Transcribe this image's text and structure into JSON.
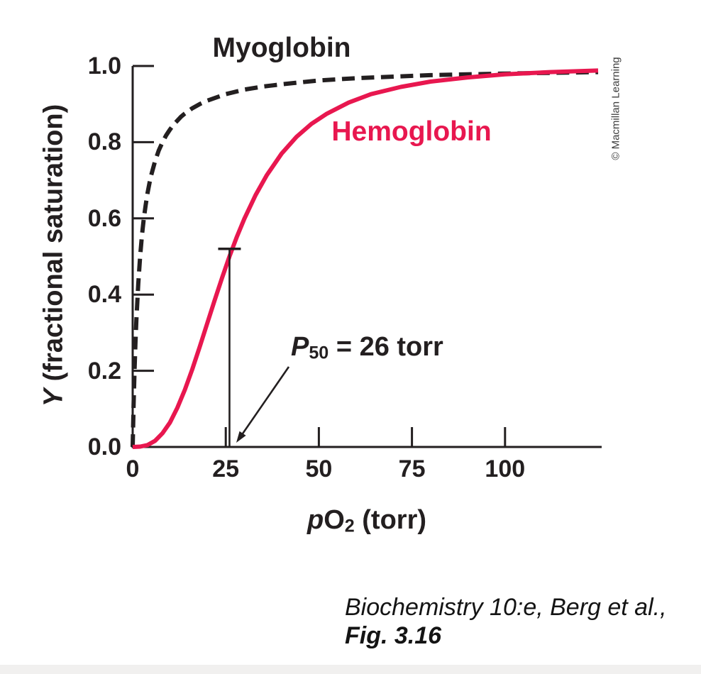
{
  "figure": {
    "credit": "© Macmillan Learning",
    "myoglobin_label": "Myoglobin",
    "hemoglobin_label": "Hemoglobin",
    "y_axis": {
      "symbol": "Y",
      "label_rest": " (fractional saturation)",
      "tick_labels": [
        "1.0",
        "0.8",
        "0.6",
        "0.4",
        "0.2",
        "0.0"
      ]
    },
    "x_axis": {
      "symbol": "p",
      "molecule": "O",
      "subscript": "2",
      "label_rest": " (torr)",
      "tick_labels": [
        "0",
        "25",
        "50",
        "75",
        "100"
      ]
    },
    "p50_annotation": {
      "symbol": "P",
      "subscript": "50",
      "value_text": " = 26 torr"
    }
  },
  "caption": {
    "line1": "Biochemistry 10:e, Berg et al.,",
    "line2": "Fig. 3.16"
  },
  "chart_data": {
    "type": "line",
    "title": "Oxygen binding curves of myoglobin and hemoglobin",
    "xlabel": "pO2 (torr)",
    "ylabel": "Y (fractional saturation)",
    "xlim": [
      0,
      125
    ],
    "ylim": [
      0,
      1.0
    ],
    "x_ticks": [
      0,
      25,
      50,
      75,
      100
    ],
    "y_ticks": [
      0,
      0.2,
      0.4,
      0.6,
      0.8,
      1.0
    ],
    "grid": false,
    "legend_position": "labels-on-curves",
    "annotation": {
      "label": "P50 = 26 torr",
      "x_torr": 26,
      "marker_top_fraction": 0.52
    },
    "series": [
      {
        "name": "Myoglobin",
        "color": "#231f20",
        "line_style": "dashed",
        "points": [
          [
            0,
            0
          ],
          [
            0.25,
            0.111
          ],
          [
            0.5,
            0.2
          ],
          [
            0.75,
            0.273
          ],
          [
            1,
            0.333
          ],
          [
            1.5,
            0.429
          ],
          [
            2,
            0.5
          ],
          [
            2.5,
            0.556
          ],
          [
            3,
            0.6
          ],
          [
            3.5,
            0.636
          ],
          [
            4,
            0.667
          ],
          [
            4.5,
            0.692
          ],
          [
            5,
            0.714
          ],
          [
            6,
            0.75
          ],
          [
            7,
            0.778
          ],
          [
            8,
            0.8
          ],
          [
            9,
            0.818
          ],
          [
            10,
            0.833
          ],
          [
            11,
            0.846
          ],
          [
            13,
            0.867
          ],
          [
            14,
            0.875
          ],
          [
            16,
            0.889
          ],
          [
            18,
            0.9
          ],
          [
            20,
            0.909
          ],
          [
            25,
            0.926
          ],
          [
            30,
            0.938
          ],
          [
            35,
            0.946
          ],
          [
            40,
            0.952
          ],
          [
            50,
            0.962
          ],
          [
            60,
            0.968
          ],
          [
            70,
            0.972
          ],
          [
            80,
            0.976
          ],
          [
            90,
            0.978
          ],
          [
            100,
            0.98
          ],
          [
            112,
            0.982
          ],
          [
            125,
            0.984
          ]
        ]
      },
      {
        "name": "Hemoglobin",
        "color": "#e8174f",
        "line_style": "solid",
        "points": [
          [
            0,
            0
          ],
          [
            2,
            0.001
          ],
          [
            4,
            0.005
          ],
          [
            6,
            0.016
          ],
          [
            8,
            0.036
          ],
          [
            10,
            0.064
          ],
          [
            12,
            0.103
          ],
          [
            14,
            0.15
          ],
          [
            16,
            0.204
          ],
          [
            18,
            0.263
          ],
          [
            20,
            0.324
          ],
          [
            22,
            0.385
          ],
          [
            24,
            0.444
          ],
          [
            26,
            0.5
          ],
          [
            28,
            0.552
          ],
          [
            30,
            0.599
          ],
          [
            33,
            0.661
          ],
          [
            36,
            0.713
          ],
          [
            40,
            0.77
          ],
          [
            44,
            0.814
          ],
          [
            48,
            0.848
          ],
          [
            52,
            0.874
          ],
          [
            58,
            0.904
          ],
          [
            64,
            0.926
          ],
          [
            72,
            0.945
          ],
          [
            80,
            0.959
          ],
          [
            90,
            0.97
          ],
          [
            100,
            0.978
          ],
          [
            112,
            0.984
          ],
          [
            125,
            0.988
          ]
        ]
      }
    ]
  }
}
